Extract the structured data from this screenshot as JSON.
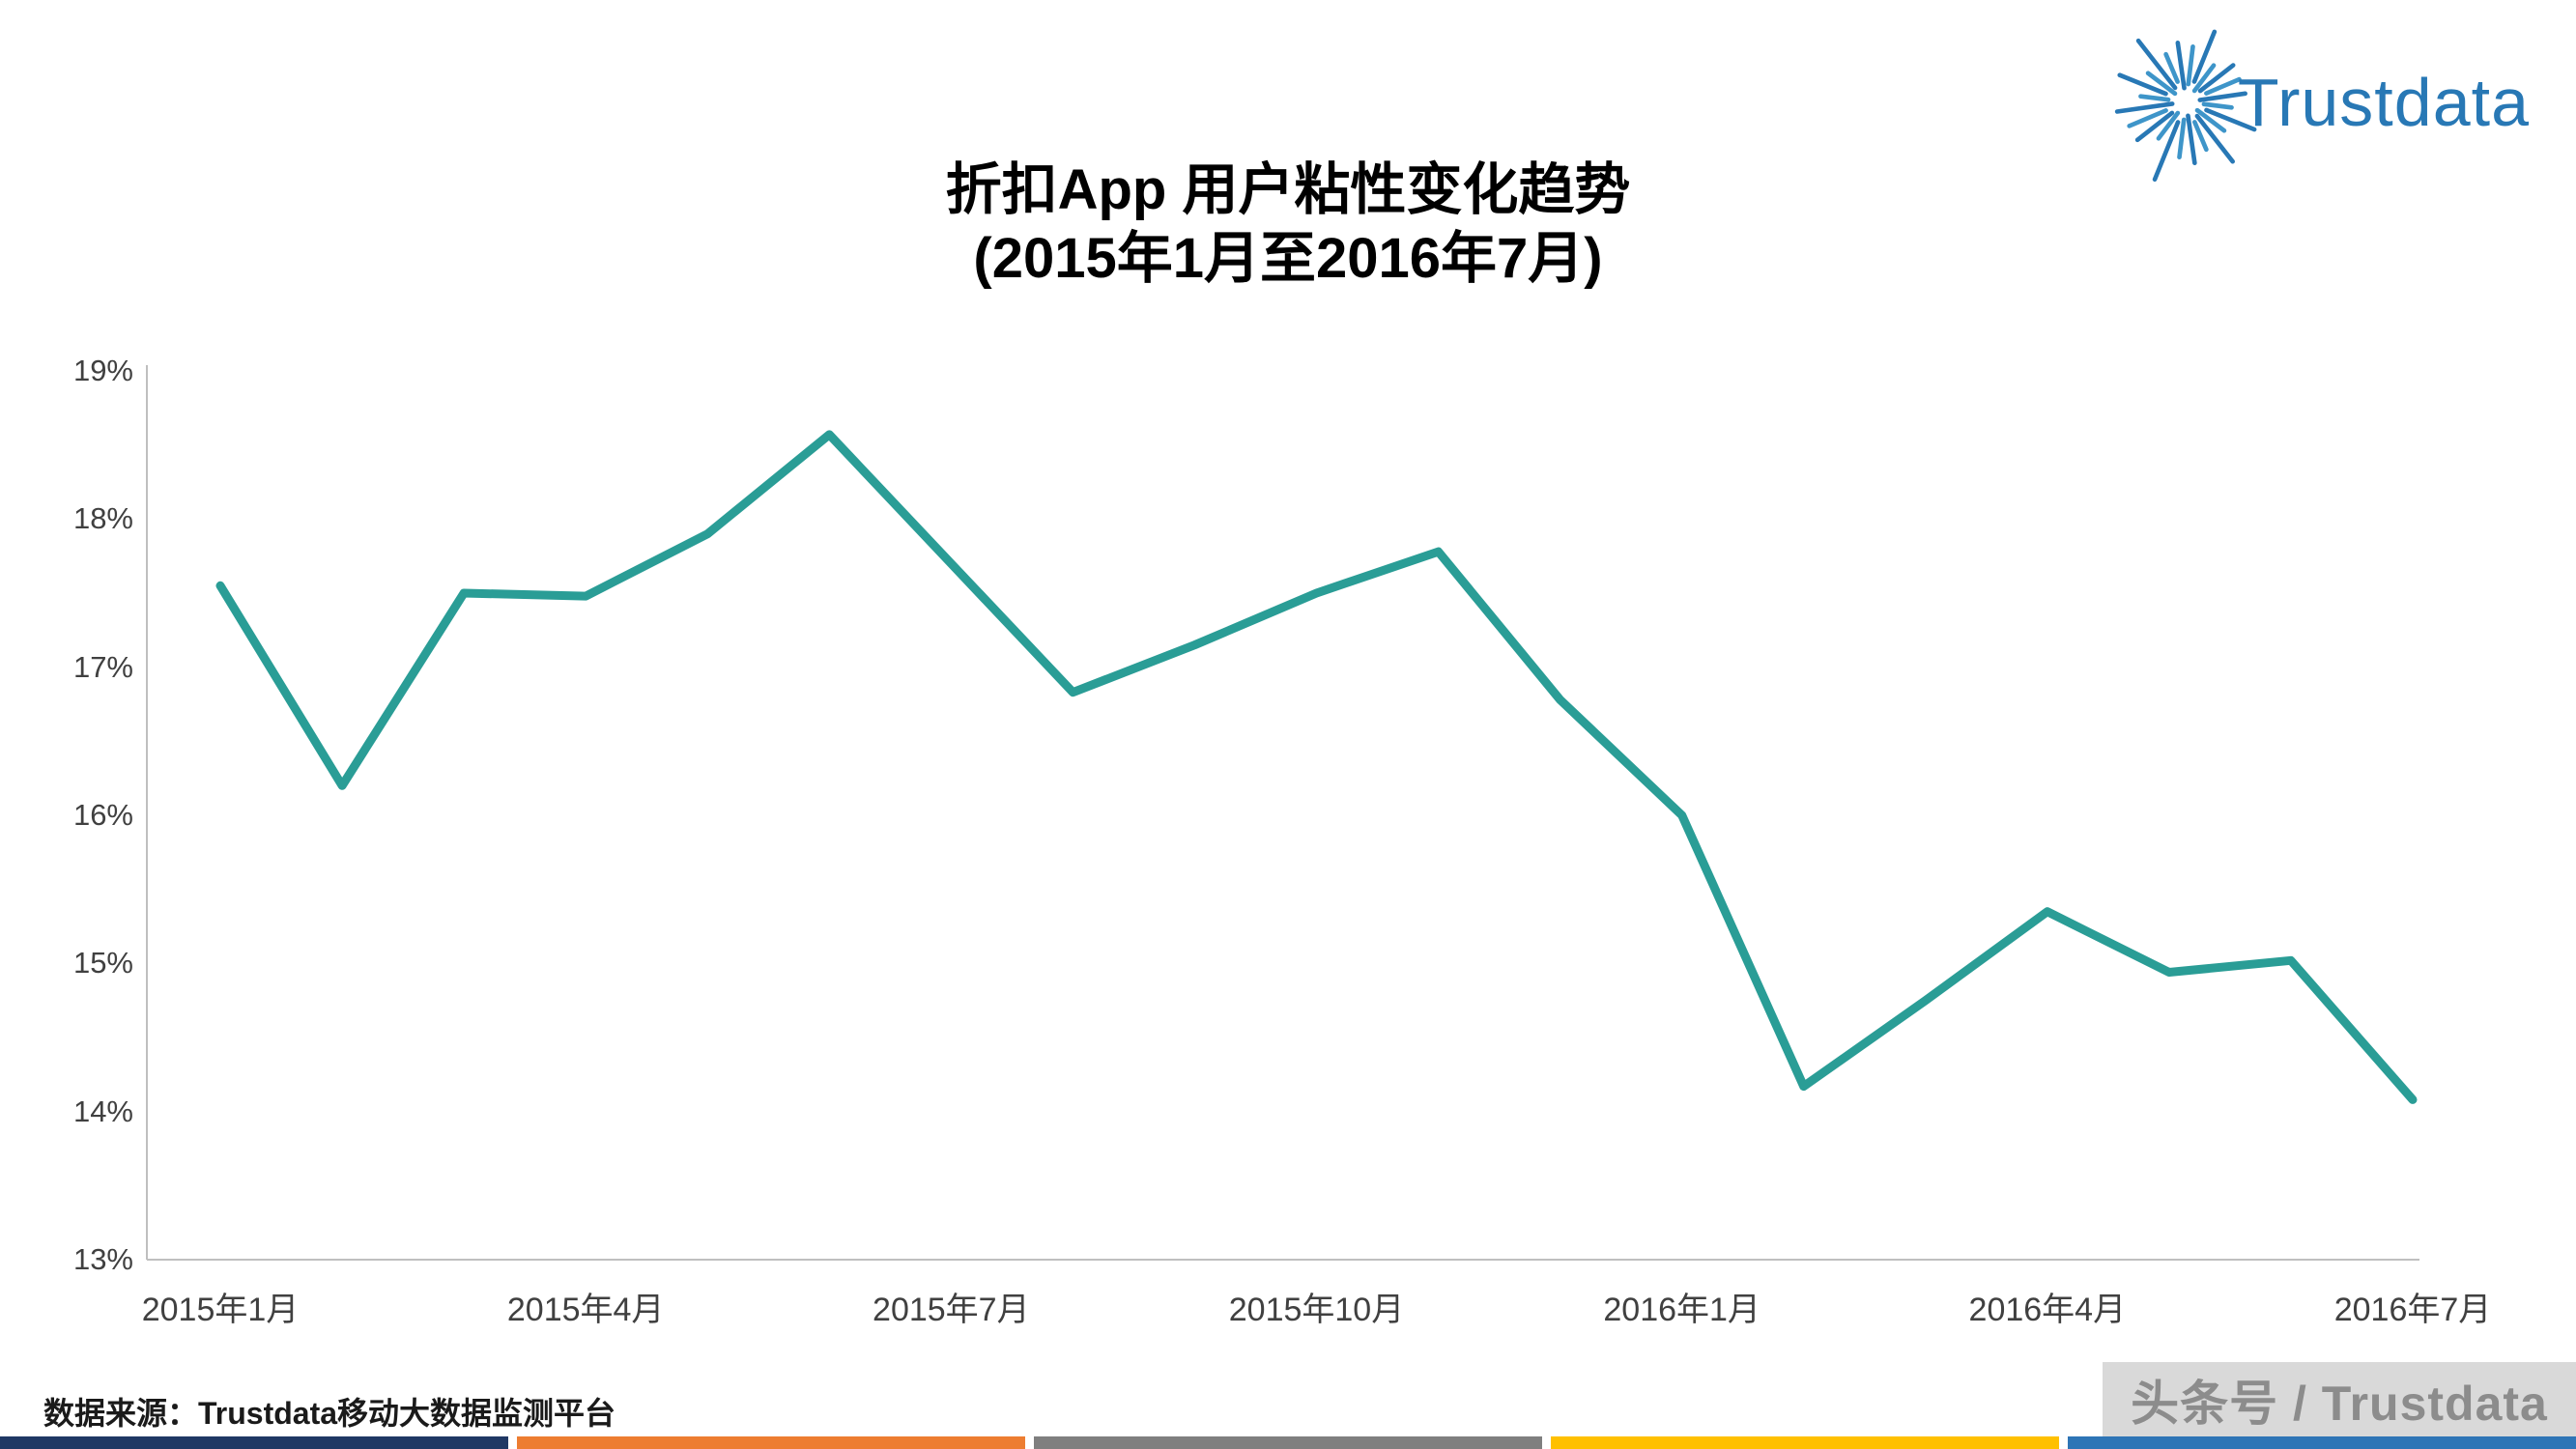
{
  "logo": {
    "text": "Trustdata",
    "color": "#2878B5"
  },
  "title": {
    "line1": "折扣App 用户粘性变化趋势",
    "line2": "(2015年1月至2016年7月)"
  },
  "chart_data": {
    "type": "line",
    "title": "折扣App 用户粘性变化趋势",
    "subtitle": "(2015年1月至2016年7月)",
    "x": [
      "2015年1月",
      "2015年2月",
      "2015年3月",
      "2015年4月",
      "2015年5月",
      "2015年6月",
      "2015年7月",
      "2015年8月",
      "2015年9月",
      "2015年10月",
      "2015年11月",
      "2015年12月",
      "2016年1月",
      "2016年2月",
      "2016年3月",
      "2016年4月",
      "2016年5月",
      "2016年6月",
      "2016年7月"
    ],
    "values": [
      17.55,
      16.2,
      17.5,
      17.48,
      17.9,
      18.57,
      17.7,
      16.83,
      17.15,
      17.5,
      17.78,
      16.78,
      16.0,
      14.17,
      14.75,
      15.35,
      14.94,
      15.02,
      14.08
    ],
    "unit": "%",
    "ylim": [
      13,
      19
    ],
    "ytick_values": [
      19,
      18,
      17,
      16,
      15,
      14,
      13
    ],
    "ytick_labels": [
      "19%",
      "18%",
      "17%",
      "16%",
      "15%",
      "14%",
      "13%"
    ],
    "xticks": [
      {
        "index": 0,
        "label": "2015年1月"
      },
      {
        "index": 3,
        "label": "2015年4月"
      },
      {
        "index": 6,
        "label": "2015年7月"
      },
      {
        "index": 9,
        "label": "2015年10月"
      },
      {
        "index": 12,
        "label": "2016年1月"
      },
      {
        "index": 15,
        "label": "2016年4月"
      },
      {
        "index": 18,
        "label": "2016年7月"
      }
    ],
    "line_color": "#2A9D96",
    "axis_color": "#BFBFBF",
    "grid": false,
    "legend": null
  },
  "footer": {
    "source": "数据来源：Trustdata移动大数据监测平台",
    "badge": "头条号 / Trustdata",
    "badge_bg": "#D9D9D9",
    "badge_text_color": "#8C8C8C",
    "strip_colors": [
      "#1F3864",
      "#ED7D31",
      "#7F7F7F",
      "#FFC000",
      "#2E75B6"
    ]
  }
}
